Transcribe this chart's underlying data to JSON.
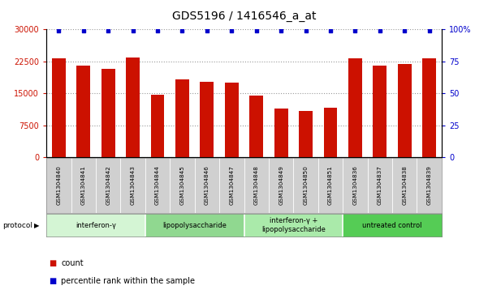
{
  "title": "GDS5196 / 1416546_a_at",
  "samples": [
    "GSM1304840",
    "GSM1304841",
    "GSM1304842",
    "GSM1304843",
    "GSM1304844",
    "GSM1304845",
    "GSM1304846",
    "GSM1304847",
    "GSM1304848",
    "GSM1304849",
    "GSM1304850",
    "GSM1304851",
    "GSM1304836",
    "GSM1304837",
    "GSM1304838",
    "GSM1304839"
  ],
  "counts": [
    23200,
    21600,
    20800,
    23500,
    14700,
    18200,
    17800,
    17500,
    14500,
    11500,
    10800,
    11600,
    23200,
    21600,
    21800,
    23200
  ],
  "percentiles": [
    99,
    99,
    99,
    99,
    99,
    99,
    99,
    99,
    99,
    99,
    99,
    99,
    99,
    99,
    99,
    99
  ],
  "bar_color": "#cc1100",
  "dot_color": "#0000cc",
  "ylim_left": [
    0,
    30000
  ],
  "ylim_right": [
    0,
    100
  ],
  "yticks_left": [
    0,
    7500,
    15000,
    22500,
    30000
  ],
  "yticks_right": [
    0,
    25,
    50,
    75,
    100
  ],
  "groups": [
    {
      "label": "interferon-γ",
      "start": 0,
      "end": 4,
      "color": "#d4f5d4"
    },
    {
      "label": "lipopolysaccharide",
      "start": 4,
      "end": 8,
      "color": "#90d890"
    },
    {
      "label": "interferon-γ +\nlipopolysaccharide",
      "start": 8,
      "end": 12,
      "color": "#aaeaaa"
    },
    {
      "label": "untreated control",
      "start": 12,
      "end": 16,
      "color": "#55cc55"
    }
  ],
  "left_tick_color": "#cc1100",
  "right_tick_color": "#0000cc",
  "title_fontsize": 10,
  "tick_fontsize": 7,
  "bar_width": 0.55,
  "dot_size": 12,
  "background_color": "#ffffff",
  "plot_bg": "#ffffff",
  "grid_color": "#999999",
  "sample_band_color": "#d0d0d0",
  "protocol_label": "protocol",
  "legend_count_color": "#cc1100",
  "legend_dot_color": "#0000cc"
}
